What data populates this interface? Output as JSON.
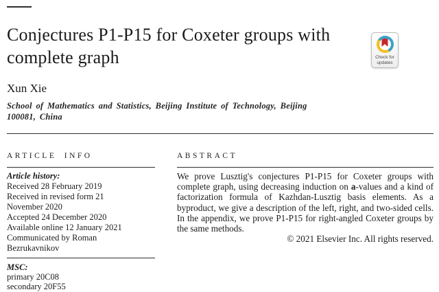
{
  "colors": {
    "ink": "#1b1b1b",
    "rule": "#2e2e2e",
    "badge_blue": "#3BA2C6",
    "badge_yellow": "#F0BF22",
    "badge_red": "#C8272B",
    "badge_text": "#4a4a4a",
    "badge_border": "#bcbcbc"
  },
  "header": {
    "title_lines": [
      "Conjectures P1-P15 for Coxeter groups with",
      "complete graph"
    ],
    "author": "Xun Xie",
    "affiliation": "School of Mathematics and Statistics, Beijing Institute of Technology, Beijing 100081, China"
  },
  "badge": {
    "label_line1": "Check for",
    "label_line2": "updates"
  },
  "article_info": {
    "heading": "ARTICLE INFO",
    "history_label": "Article history:",
    "history_lines": [
      "Received 28 February 2019",
      "Received in revised form 21",
      "November 2020",
      "Accepted 24 December 2020",
      "Available online 12 January 2021",
      "Communicated by Roman",
      "Bezrukavnikov"
    ],
    "msc_label": "MSC:",
    "msc_lines": [
      "primary 20C08",
      "secondary 20F55"
    ]
  },
  "abstract": {
    "heading": "ABSTRACT",
    "segments": [
      {
        "t": "We prove Lusztig's conjectures P1-P15 for Coxeter groups with complete graph, using decreasing induction on "
      },
      {
        "t": "a",
        "b": true
      },
      {
        "t": "-values and a kind of factorization formula of Kazhdan-Lusztig basis elements. As a byproduct, we give a description of the left, right, and two-sided cells. In the appendix, we prove P1-P15 for right-angled Coxeter groups by the same methods."
      }
    ],
    "copyright": "© 2021 Elsevier Inc. All rights reserved."
  }
}
